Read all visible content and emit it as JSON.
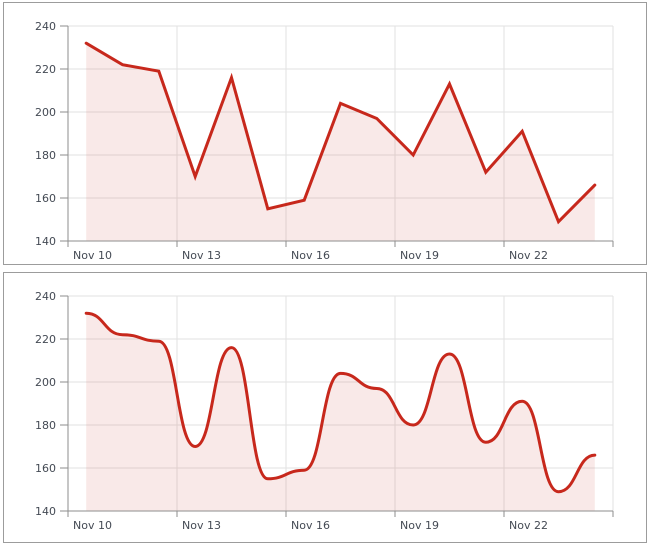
{
  "style": {
    "background": "#ffffff",
    "panel_border": "#9c9c9c",
    "line_color": "#c7281c",
    "fill_color": "rgba(199,40,28,0.10)",
    "grid_color": "#e2e2e2",
    "axis_color": "#8e8e8e",
    "label_color": "#444a54"
  },
  "chart_data": [
    {
      "type": "line",
      "interpolation": "linear",
      "title": "",
      "xlabel": "",
      "ylabel": "",
      "categories": [
        "Nov 10",
        "Nov 11",
        "Nov 12",
        "Nov 13",
        "Nov 14",
        "Nov 15",
        "Nov 16",
        "Nov 17",
        "Nov 18",
        "Nov 19",
        "Nov 20",
        "Nov 21",
        "Nov 22",
        "Nov 23",
        "Nov 24"
      ],
      "values": [
        232,
        222,
        219,
        170,
        216,
        155,
        159,
        204,
        197,
        180,
        213,
        172,
        191,
        149,
        166
      ],
      "ylim": [
        140,
        240
      ],
      "yticks": [
        140,
        160,
        180,
        200,
        220,
        240
      ],
      "xtick_labels": [
        "Nov 10",
        "Nov 13",
        "Nov 16",
        "Nov 19",
        "Nov 22"
      ],
      "xtick_day_indices": [
        0,
        3,
        6,
        9,
        12
      ],
      "grid": true,
      "legend": "none",
      "area_fill": true
    },
    {
      "type": "line",
      "interpolation": "spline",
      "title": "",
      "xlabel": "",
      "ylabel": "",
      "categories": [
        "Nov 10",
        "Nov 11",
        "Nov 12",
        "Nov 13",
        "Nov 14",
        "Nov 15",
        "Nov 16",
        "Nov 17",
        "Nov 18",
        "Nov 19",
        "Nov 20",
        "Nov 21",
        "Nov 22",
        "Nov 23",
        "Nov 24"
      ],
      "values": [
        232,
        222,
        219,
        170,
        216,
        155,
        159,
        204,
        197,
        180,
        213,
        172,
        191,
        149,
        166
      ],
      "ylim": [
        140,
        240
      ],
      "yticks": [
        140,
        160,
        180,
        200,
        220,
        240
      ],
      "xtick_labels": [
        "Nov 10",
        "Nov 13",
        "Nov 16",
        "Nov 19",
        "Nov 22"
      ],
      "xtick_day_indices": [
        0,
        3,
        6,
        9,
        12
      ],
      "grid": true,
      "legend": "none",
      "area_fill": true
    }
  ]
}
